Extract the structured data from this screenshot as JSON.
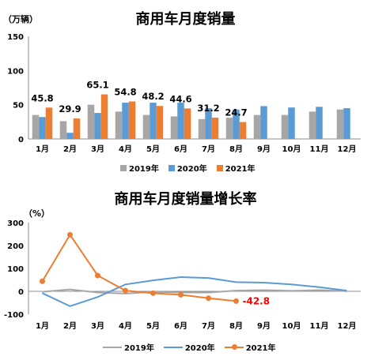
{
  "chart_data": [
    {
      "type": "bar",
      "title": "商用车月度销量",
      "unit_label": "（万辆）",
      "categories": [
        "1月",
        "2月",
        "3月",
        "4月",
        "5月",
        "6月",
        "7月",
        "8月",
        "9月",
        "10月",
        "11月",
        "12月"
      ],
      "ylim": [
        0,
        150
      ],
      "yticks": [
        0,
        50,
        100,
        150
      ],
      "series": [
        {
          "name": "2019年",
          "color": "#a6a6a6",
          "values": [
            35,
            26,
            50,
            40,
            35,
            33,
            29,
            31,
            35,
            35,
            40,
            43
          ]
        },
        {
          "name": "2020年",
          "color": "#5b9bd5",
          "values": [
            32,
            9,
            38,
            53,
            53,
            53,
            45,
            43,
            48,
            46,
            47,
            45
          ]
        },
        {
          "name": "2021年",
          "color": "#ed7d31",
          "values": [
            45.8,
            29.9,
            65.1,
            54.8,
            48.2,
            44.6,
            31.2,
            24.7,
            null,
            null,
            null,
            null
          ]
        }
      ],
      "data_labels": [
        "45.8",
        "29.9",
        "65.1",
        "54.8",
        "48.2",
        "44.6",
        "31.2",
        "24.7"
      ],
      "legend_position": "bottom",
      "grid": false
    },
    {
      "type": "line",
      "title": "商用车月度销量增长率",
      "unit_label": "（%）",
      "categories": [
        "1月",
        "2月",
        "3月",
        "4月",
        "5月",
        "6月",
        "7月",
        "8月",
        "9月",
        "10月",
        "11月",
        "12月"
      ],
      "ylim": [
        -100,
        300
      ],
      "yticks": [
        -100,
        0,
        100,
        200,
        300
      ],
      "series": [
        {
          "name": "2019年",
          "color": "#a6a6a6",
          "values": [
            -2,
            8,
            -5,
            -10,
            -2,
            -5,
            -5,
            3,
            5,
            2,
            5,
            1
          ]
        },
        {
          "name": "2020年",
          "color": "#5b9bd5",
          "values": [
            -8,
            -65,
            -25,
            30,
            48,
            62,
            58,
            40,
            38,
            30,
            18,
            3
          ]
        },
        {
          "name": "2021年",
          "color": "#ed7d31",
          "values": [
            44,
            247,
            69,
            3,
            -8,
            -15,
            -30,
            -42.8,
            null,
            null,
            null,
            null
          ]
        }
      ],
      "end_label": "-42.8",
      "legend_position": "bottom",
      "grid": false
    }
  ]
}
